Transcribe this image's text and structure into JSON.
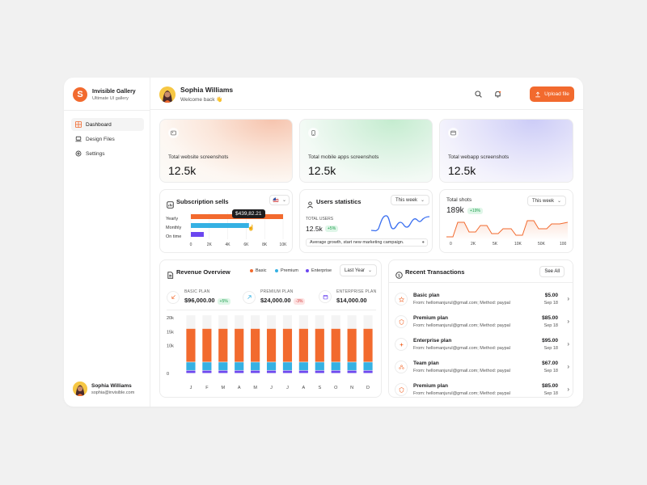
{
  "brand": {
    "title": "Invisible Gallery",
    "subtitle": "Ultimate UI gallery",
    "logo_letter": "S"
  },
  "sidebar": {
    "items": [
      {
        "label": "Dashboard",
        "icon": "grid-icon",
        "active": true
      },
      {
        "label": "Design Files",
        "icon": "laptop-icon",
        "active": false
      },
      {
        "label": "Settings",
        "icon": "gear-icon",
        "active": false
      }
    ],
    "user": {
      "name": "Sophia Williams",
      "email": "sophia@invisible.com"
    }
  },
  "header": {
    "user_name": "Sophia Williams",
    "welcome": "Welcome back 👋",
    "upload_label": "Upload file"
  },
  "stats": [
    {
      "label": "Total website screenshots",
      "value": "12.5k",
      "icon": "image-icon"
    },
    {
      "label": "Total mobile apps screenshots",
      "value": "12.5k",
      "icon": "phone-icon"
    },
    {
      "label": "Total webapp screenshots",
      "value": "12.5k",
      "icon": "browser-icon"
    }
  ],
  "subscription": {
    "title": "Subscription sells",
    "rows": [
      {
        "label": "Yearly",
        "value": 10000,
        "color": "#f26a2e"
      },
      {
        "label": "Monthly",
        "value": 6300,
        "color": "#35b1e3"
      },
      {
        "label": "On time",
        "value": 1400,
        "color": "#6b46f0"
      }
    ],
    "ticks": [
      "0",
      "2K",
      "4K",
      "6K",
      "8K",
      "10K"
    ],
    "tooltip": "$439,82.21"
  },
  "users_stats": {
    "title": "Users statistics",
    "filter": "This week",
    "total_label": "TOTAL USERS",
    "total_value": "12.5k",
    "change": "+5%",
    "note": "Average growth, start new marketing campaign."
  },
  "total_shots": {
    "title": "Total shots",
    "filter": "This week",
    "value": "189k",
    "change": "+19%",
    "ticks": [
      "0",
      "2K",
      "5K",
      "10K",
      "50K",
      "100"
    ]
  },
  "revenue": {
    "title": "Revenue Overview",
    "filter": "Last Year",
    "legend": [
      {
        "name": "Basic",
        "color": "#f26a2e"
      },
      {
        "name": "Premium",
        "color": "#35b1e3"
      },
      {
        "name": "Enterprise",
        "color": "#6b46f0"
      }
    ],
    "plans": [
      {
        "label": "BASIC PLAN",
        "value": "$96,000.00",
        "change": "+5%",
        "trend": "down",
        "icon": "arrow-down-left-icon"
      },
      {
        "label": "PREMIUM PLAN",
        "value": "$24,000.00",
        "change": "-3%",
        "trend": "up",
        "icon": "arrow-up-right-icon"
      },
      {
        "label": "ENTERPRISE PLAN",
        "value": "$14,000.00",
        "change": "",
        "trend": "",
        "icon": "calendar-icon"
      }
    ]
  },
  "chart_data": {
    "type": "bar",
    "stacked": true,
    "categories": [
      "J",
      "F",
      "M",
      "A",
      "M",
      "J",
      "J",
      "A",
      "S",
      "O",
      "N",
      "D"
    ],
    "series": [
      {
        "name": "Enterprise",
        "values": [
          1000,
          1000,
          1000,
          1000,
          1000,
          1000,
          1000,
          1000,
          1000,
          1000,
          1000,
          1000
        ]
      },
      {
        "name": "Premium",
        "values": [
          3000,
          3000,
          3000,
          3000,
          3000,
          3000,
          3000,
          3000,
          3000,
          3000,
          3000,
          3000
        ]
      },
      {
        "name": "Basic",
        "values": [
          12000,
          12000,
          12000,
          12000,
          12000,
          12000,
          12000,
          12000,
          12000,
          12000,
          12000,
          12000
        ]
      }
    ],
    "ylabels": [
      "20k",
      "15k",
      "10k",
      "0"
    ],
    "ylim": [
      0,
      20000
    ]
  },
  "transactions": {
    "title": "Recent Transactions",
    "see_all": "See All",
    "items": [
      {
        "name": "Basic plan",
        "from": "From: hellomanjurul@gmail.com; Method: paypal",
        "amount": "$5.00",
        "date": "Sep 18",
        "icon": "star-icon"
      },
      {
        "name": "Premium plan",
        "from": "From: hellomanjurul@gmail.com; Method: paypal",
        "amount": "$85.00",
        "date": "Sep 18",
        "icon": "shield-icon"
      },
      {
        "name": "Enterprise plan",
        "from": "From: hellomanjurul@gmail.com; Method: paypal",
        "amount": "$95.00",
        "date": "Sep 18",
        "icon": "sparkle-icon"
      },
      {
        "name": "Team plan",
        "from": "From: hellomanjurul@gmail.com; Method: paypal",
        "amount": "$67.00",
        "date": "Sep 18",
        "icon": "team-icon"
      },
      {
        "name": "Premium plan",
        "from": "From: hellomanjurul@gmail.com; Method: paypal",
        "amount": "$85.00",
        "date": "Sep 18",
        "icon": "shield-icon"
      }
    ]
  },
  "colors": {
    "accent": "#f26a2e",
    "cyan": "#35b1e3",
    "purple": "#6b46f0"
  }
}
